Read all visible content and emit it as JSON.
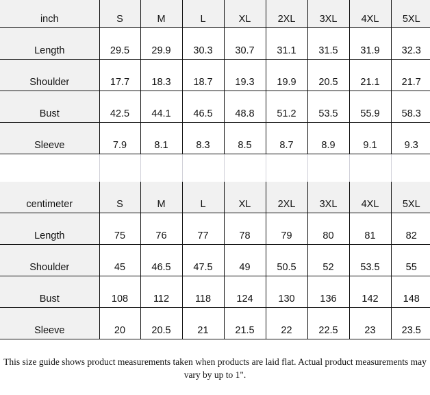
{
  "tables": [
    {
      "unit": "inch",
      "sizes": [
        "S",
        "M",
        "L",
        "XL",
        "2XL",
        "3XL",
        "4XL",
        "5XL"
      ],
      "rows": [
        {
          "label": "Length",
          "values": [
            "29.5",
            "29.9",
            "30.3",
            "30.7",
            "31.1",
            "31.5",
            "31.9",
            "32.3"
          ]
        },
        {
          "label": "Shoulder",
          "values": [
            "17.7",
            "18.3",
            "18.7",
            "19.3",
            "19.9",
            "20.5",
            "21.1",
            "21.7"
          ]
        },
        {
          "label": "Bust",
          "values": [
            "42.5",
            "44.1",
            "46.5",
            "48.8",
            "51.2",
            "53.5",
            "55.9",
            "58.3"
          ]
        },
        {
          "label": "Sleeve",
          "values": [
            "7.9",
            "8.1",
            "8.3",
            "8.5",
            "8.7",
            "8.9",
            "9.1",
            "9.3"
          ]
        }
      ]
    },
    {
      "unit": "centimeter",
      "sizes": [
        "S",
        "M",
        "L",
        "XL",
        "2XL",
        "3XL",
        "4XL",
        "5XL"
      ],
      "rows": [
        {
          "label": "Length",
          "values": [
            "75",
            "76",
            "77",
            "78",
            "79",
            "80",
            "81",
            "82"
          ]
        },
        {
          "label": "Shoulder",
          "values": [
            "45",
            "46.5",
            "47.5",
            "49",
            "50.5",
            "52",
            "53.5",
            "55"
          ]
        },
        {
          "label": "Bust",
          "values": [
            "108",
            "112",
            "118",
            "124",
            "130",
            "136",
            "142",
            "148"
          ]
        },
        {
          "label": "Sleeve",
          "values": [
            "20",
            "20.5",
            "21",
            "21.5",
            "22",
            "22.5",
            "23",
            "23.5"
          ]
        }
      ]
    }
  ],
  "footnote": "This size guide shows product measurements taken when products are laid flat. Actual product measurements may vary by up to 1\"."
}
